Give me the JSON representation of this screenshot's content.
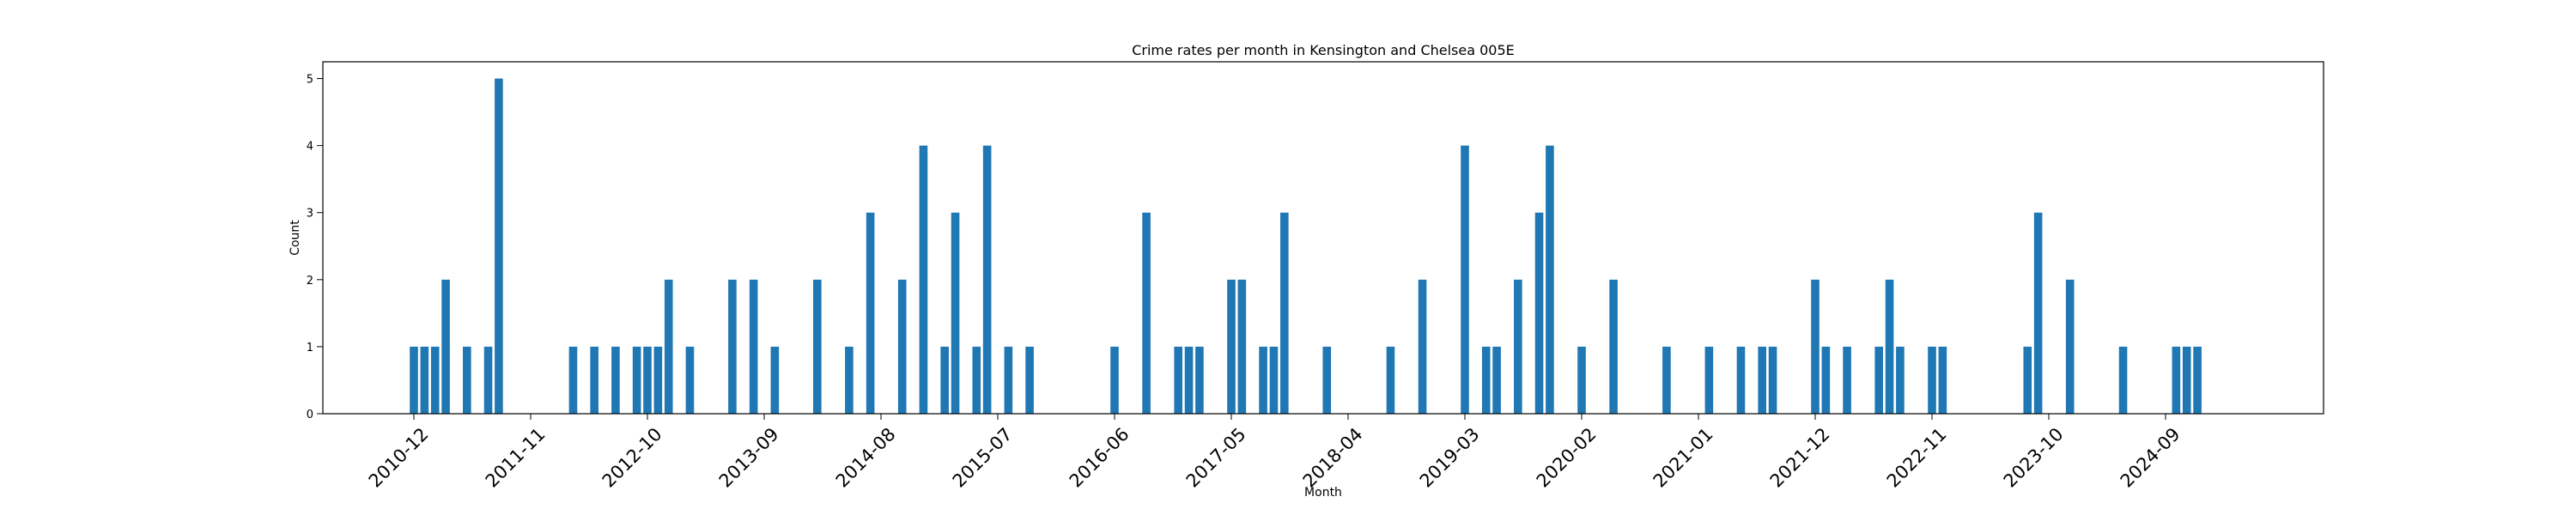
{
  "chart_data": {
    "type": "bar",
    "title": "Crime rates per month in Kensington and Chelsea 005E",
    "xlabel": "Month",
    "ylabel": "Count",
    "bar_color": "#1f77b4",
    "x_axis_type": "monthly date",
    "ylim": [
      0,
      5.25
    ],
    "yticks": [
      0,
      1,
      2,
      3,
      4,
      5
    ],
    "xticks": [
      "2010-12",
      "2011-11",
      "2012-10",
      "2013-09",
      "2014-08",
      "2015-07",
      "2016-06",
      "2017-05",
      "2018-04",
      "2019-03",
      "2020-02",
      "2021-01",
      "2021-12",
      "2022-11",
      "2023-10",
      "2024-09"
    ],
    "x": [
      "2010-12",
      "2011-01",
      "2011-02",
      "2011-03",
      "2011-05",
      "2011-07",
      "2011-08",
      "2012-03",
      "2012-05",
      "2012-07",
      "2012-09",
      "2012-10",
      "2012-11",
      "2012-12",
      "2013-02",
      "2013-06",
      "2013-08",
      "2013-10",
      "2014-02",
      "2014-05",
      "2014-07",
      "2014-10",
      "2014-12",
      "2015-02",
      "2015-03",
      "2015-05",
      "2015-06",
      "2015-08",
      "2015-10",
      "2016-06",
      "2016-09",
      "2016-12",
      "2017-01",
      "2017-02",
      "2017-05",
      "2017-06",
      "2017-08",
      "2017-09",
      "2017-10",
      "2018-02",
      "2018-08",
      "2018-11",
      "2019-03",
      "2019-05",
      "2019-06",
      "2019-08",
      "2019-10",
      "2019-11",
      "2020-02",
      "2020-05",
      "2020-10",
      "2021-02",
      "2021-05",
      "2021-07",
      "2021-08",
      "2021-12",
      "2022-01",
      "2022-03",
      "2022-06",
      "2022-07",
      "2022-08",
      "2022-11",
      "2022-12",
      "2023-08",
      "2023-09",
      "2023-12",
      "2024-05",
      "2024-10",
      "2024-11",
      "2024-12"
    ],
    "values": [
      1,
      1,
      1,
      2,
      1,
      1,
      5,
      1,
      1,
      1,
      1,
      1,
      1,
      2,
      1,
      2,
      2,
      1,
      2,
      1,
      3,
      2,
      4,
      1,
      3,
      1,
      4,
      1,
      1,
      1,
      3,
      1,
      1,
      1,
      2,
      2,
      1,
      1,
      3,
      1,
      1,
      2,
      4,
      1,
      1,
      2,
      3,
      4,
      1,
      2,
      1,
      1,
      1,
      1,
      1,
      2,
      1,
      1,
      1,
      2,
      1,
      1,
      1,
      1,
      3,
      2,
      1,
      1,
      1,
      1
    ]
  }
}
